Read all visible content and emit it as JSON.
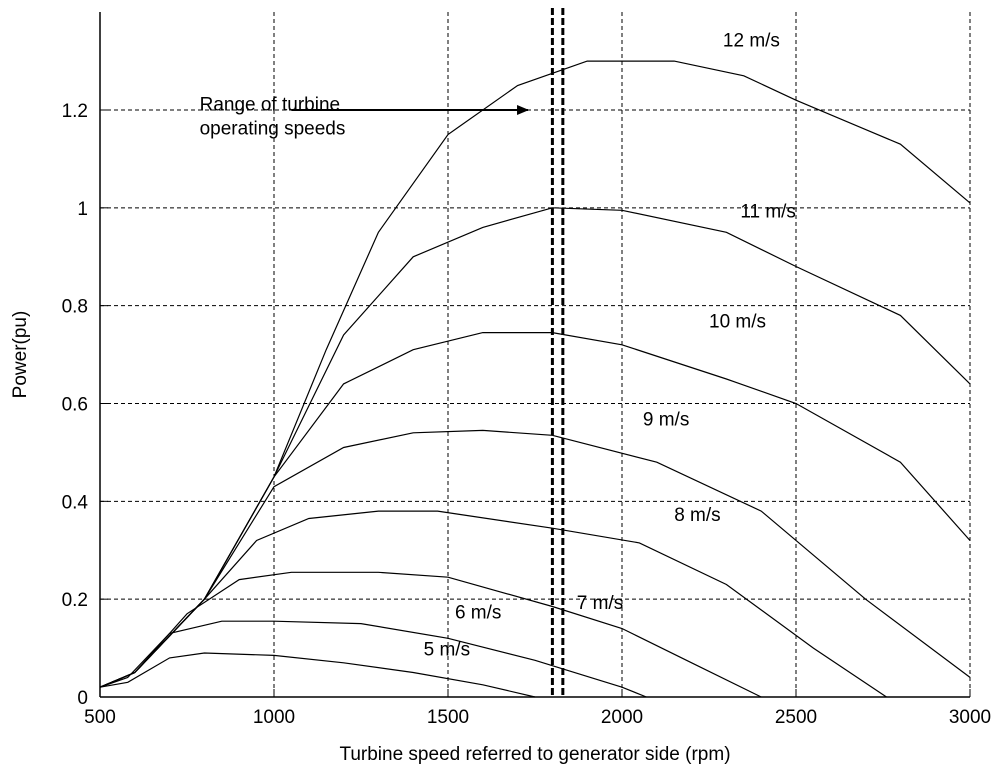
{
  "chart_data": {
    "type": "line",
    "title": "",
    "xlabel": "Turbine speed referred to generator side (rpm)",
    "ylabel": "Power(pu)",
    "xlim": [
      500,
      3000
    ],
    "ylim": [
      0,
      1.4
    ],
    "xticks": [
      500,
      1000,
      1500,
      2000,
      2500,
      3000
    ],
    "yticks": [
      0,
      0.2,
      0.4,
      0.6,
      0.8,
      1,
      1.2
    ],
    "ytick_labels": [
      "0",
      "0.2",
      "0.4",
      "0.6",
      "0.8",
      "1",
      "1.2"
    ],
    "grid": true,
    "grid_style": "dashed",
    "series": [
      {
        "name": "5 m/s",
        "x": [
          500,
          580,
          700,
          800,
          1000,
          1200,
          1400,
          1600,
          1750
        ],
        "y": [
          0.02,
          0.03,
          0.08,
          0.09,
          0.085,
          0.07,
          0.05,
          0.025,
          0.0
        ]
      },
      {
        "name": "6 m/s",
        "x": [
          500,
          580,
          700,
          850,
          1000,
          1250,
          1500,
          1750,
          2000,
          2070
        ],
        "y": [
          0.02,
          0.04,
          0.13,
          0.155,
          0.155,
          0.15,
          0.12,
          0.075,
          0.02,
          0.0
        ]
      },
      {
        "name": "7 m/s",
        "x": [
          500,
          600,
          750,
          900,
          1050,
          1300,
          1500,
          1800,
          2000,
          2200,
          2400
        ],
        "y": [
          0.02,
          0.05,
          0.17,
          0.24,
          0.255,
          0.255,
          0.245,
          0.185,
          0.14,
          0.07,
          0.0
        ]
      },
      {
        "name": "8 m/s",
        "x": [
          500,
          600,
          800,
          950,
          1100,
          1300,
          1470,
          1800,
          2050,
          2300,
          2550,
          2760
        ],
        "y": [
          0.02,
          0.05,
          0.2,
          0.32,
          0.365,
          0.38,
          0.38,
          0.345,
          0.315,
          0.23,
          0.1,
          0.0
        ]
      },
      {
        "name": "9 m/s",
        "x": [
          500,
          600,
          800,
          1000,
          1200,
          1400,
          1600,
          1800,
          2100,
          2400,
          2700,
          3000
        ],
        "y": [
          0.02,
          0.05,
          0.2,
          0.43,
          0.51,
          0.54,
          0.545,
          0.535,
          0.48,
          0.38,
          0.2,
          0.04
        ]
      },
      {
        "name": "10 m/s",
        "x": [
          500,
          600,
          800,
          1000,
          1200,
          1400,
          1600,
          1800,
          2000,
          2300,
          2500,
          2800,
          3000
        ],
        "y": [
          0.02,
          0.05,
          0.2,
          0.45,
          0.64,
          0.71,
          0.745,
          0.745,
          0.72,
          0.65,
          0.6,
          0.48,
          0.32
        ]
      },
      {
        "name": "11 m/s",
        "x": [
          500,
          600,
          800,
          1000,
          1200,
          1400,
          1600,
          1800,
          2000,
          2300,
          2500,
          2800,
          3000
        ],
        "y": [
          0.02,
          0.05,
          0.2,
          0.45,
          0.74,
          0.9,
          0.96,
          1.0,
          0.995,
          0.95,
          0.88,
          0.78,
          0.64
        ]
      },
      {
        "name": "12 m/s",
        "x": [
          500,
          600,
          800,
          1000,
          1150,
          1300,
          1500,
          1700,
          1900,
          2150,
          2350,
          2500,
          2800,
          3000
        ],
        "y": [
          0.02,
          0.05,
          0.2,
          0.45,
          0.71,
          0.95,
          1.15,
          1.25,
          1.3,
          1.3,
          1.27,
          1.22,
          1.13,
          1.01
        ]
      }
    ],
    "labels": [
      {
        "text": "5 m/s",
        "x": 1430,
        "y": 0.085
      },
      {
        "text": "6 m/s",
        "x": 1520,
        "y": 0.16
      },
      {
        "text": "7 m/s",
        "x": 1870,
        "y": 0.18
      },
      {
        "text": "8 m/s",
        "x": 2150,
        "y": 0.36
      },
      {
        "text": "9 m/s",
        "x": 2060,
        "y": 0.555
      },
      {
        "text": "10 m/s",
        "x": 2250,
        "y": 0.755
      },
      {
        "text": "11 m/s",
        "x": 2340,
        "y": 0.98
      },
      {
        "text": "12 m/s",
        "x": 2290,
        "y": 1.33
      }
    ],
    "operating_range": {
      "x_start": 1800,
      "x_end": 1830
    },
    "annotation": {
      "lines": [
        "Range of turbine",
        "operating speeds"
      ],
      "x": 700,
      "y": 1.17,
      "arrow_from_x": 1050,
      "arrow_to_x": 1730,
      "arrow_y": 1.2
    }
  }
}
